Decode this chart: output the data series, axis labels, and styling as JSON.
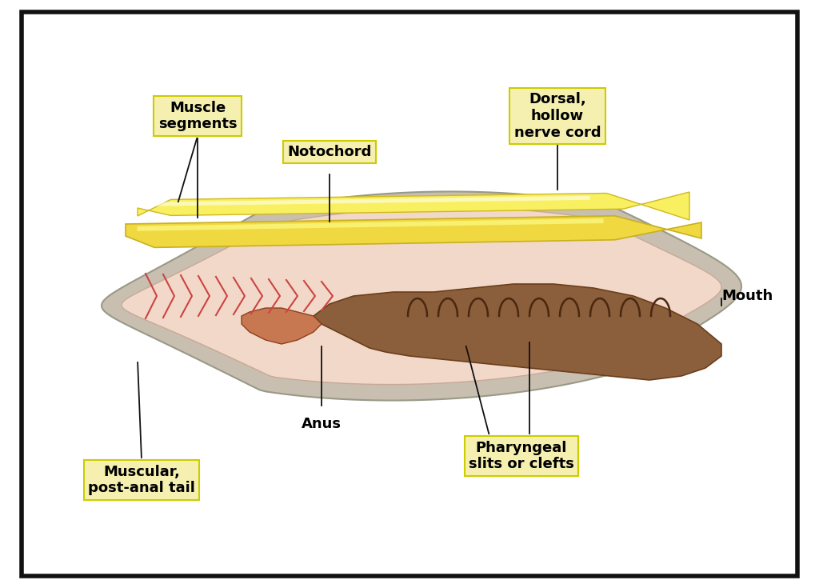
{
  "background_color": "#ffffff",
  "border_color": "#111111",
  "body_outer_color": "#d4c8b8",
  "body_inner_color": "#f0d8cc",
  "notochord_color": "#f5e060",
  "notochord_stripe_color": "#e8c830",
  "nerve_cord_color": "#f0e070",
  "nerve_cord_stripe": "#d4c840",
  "gut_color": "#8B5E3C",
  "pharynx_color": "#7a4f30",
  "muscle_segment_color": "#cc6655",
  "labels": {
    "muscle_segments": "Muscle\nsegments",
    "notochord": "Notochord",
    "dorsal_nerve": "Dorsal,\nhollow\nnerve cord",
    "anus": "Anus",
    "muscular_tail": "Muscular,\npost-anal tail",
    "pharyngeal": "Pharyngeal\nslits or clefts",
    "mouth": "Mouth"
  },
  "label_box_color": "#f5f0b0",
  "label_box_edge": "#cccc00",
  "label_fontsize": 13,
  "annotation_fontsize": 13
}
